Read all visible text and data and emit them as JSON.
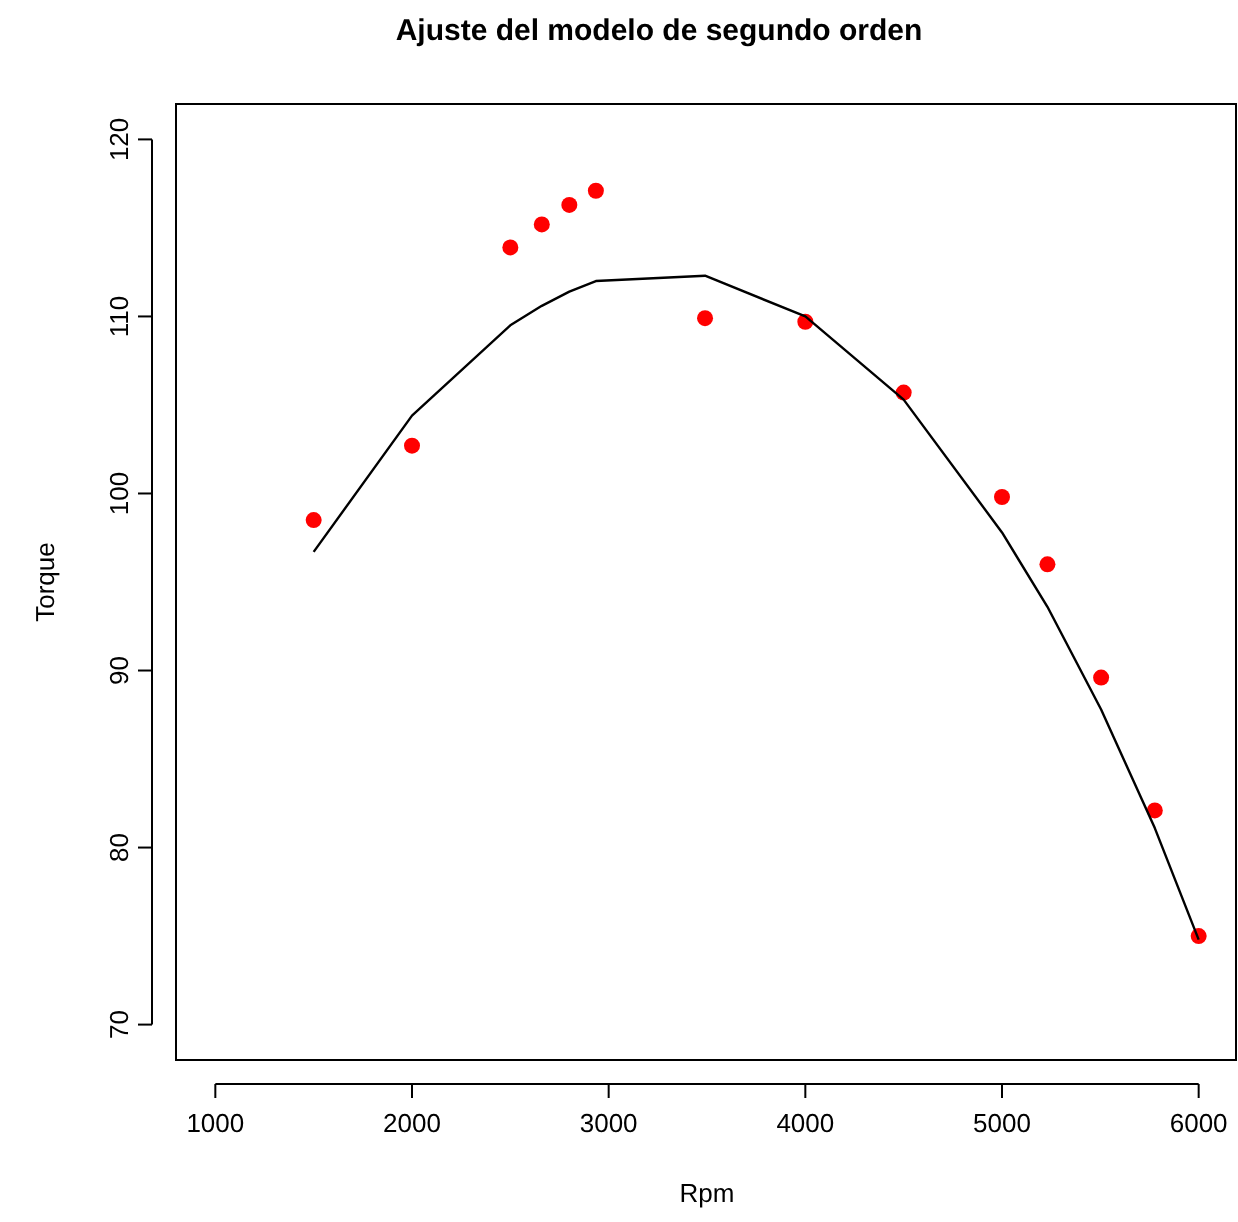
{
  "chart_data": {
    "type": "scatter",
    "title": "Ajuste del modelo de segundo orden",
    "xlabel": "Rpm",
    "ylabel": "Torque",
    "xlim": [
      800,
      6200
    ],
    "ylim": [
      68,
      122
    ],
    "xticks": [
      1000,
      2000,
      3000,
      4000,
      5000,
      6000
    ],
    "yticks": [
      70,
      80,
      90,
      100,
      110,
      120
    ],
    "grid": false,
    "series": [
      {
        "marker": "circle",
        "color": "#ff0000",
        "x": [
          1500,
          2000,
          2500,
          2660,
          2800,
          2935,
          3490,
          4000,
          4500,
          5000,
          5231,
          5504,
          5777,
          6000
        ],
        "values": [
          98.5,
          102.7,
          113.9,
          115.2,
          116.3,
          117.1,
          109.9,
          109.7,
          105.7,
          99.8,
          96.0,
          89.6,
          82.1,
          75.0
        ]
      },
      {
        "type": "line",
        "color": "#000000",
        "line_style": "solid",
        "x": [
          1500,
          2000,
          2500,
          2660,
          2800,
          2935,
          3490,
          4000,
          4500,
          5000,
          5231,
          5504,
          5777,
          6000
        ],
        "values": [
          96.7,
          104.4,
          109.5,
          110.6,
          111.4,
          112.0,
          112.3,
          110.0,
          105.3,
          97.8,
          93.6,
          87.8,
          81.1,
          74.8
        ]
      }
    ]
  }
}
